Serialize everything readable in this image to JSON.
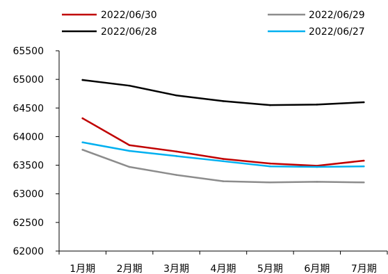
{
  "chart_data": {
    "type": "line",
    "title": "",
    "xlabel": "",
    "ylabel": "",
    "categories": [
      "1月期",
      "2月期",
      "3月期",
      "4月期",
      "5月期",
      "6月期",
      "7月期"
    ],
    "ylim": [
      62000,
      65500
    ],
    "yticks": [
      "62000",
      "62500",
      "63000",
      "63500",
      "64000",
      "64500",
      "65000",
      "65500"
    ],
    "grid": false,
    "legend_position": "top",
    "series": [
      {
        "name": "2022/06/30",
        "color": "#c00000",
        "values": [
          64320,
          63850,
          63740,
          63610,
          63530,
          63490,
          63580
        ]
      },
      {
        "name": "2022/06/29",
        "color": "#8c8c8c",
        "values": [
          63770,
          63470,
          63330,
          63220,
          63200,
          63210,
          63200
        ]
      },
      {
        "name": "2022/06/28",
        "color": "#000000",
        "values": [
          64990,
          64890,
          64720,
          64620,
          64550,
          64560,
          64600
        ]
      },
      {
        "name": "2022/06/27",
        "color": "#00b0f0",
        "values": [
          63900,
          63750,
          63660,
          63570,
          63480,
          63470,
          63480
        ]
      }
    ]
  }
}
